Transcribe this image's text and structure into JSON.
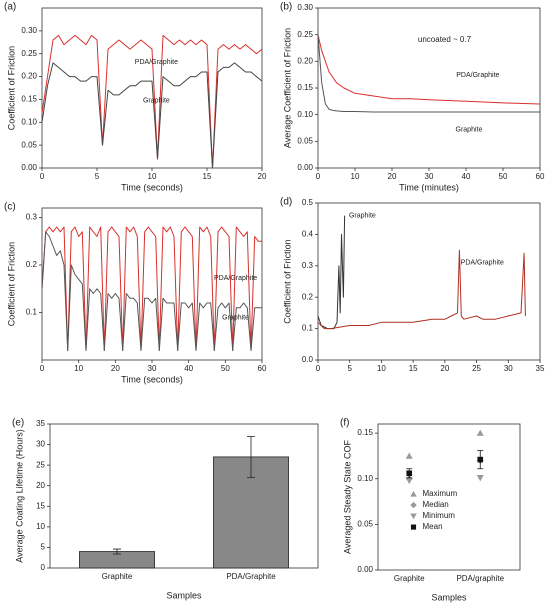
{
  "chart_data": [
    {
      "type": "line",
      "label": "(a)",
      "ylabel": "Coefficient of Friction",
      "xlabel": "Time (seconds)",
      "x": [
        0,
        0.5,
        1,
        1.5,
        2,
        2.5,
        3,
        3.5,
        4,
        4.5,
        5,
        5.5,
        6,
        6.5,
        7,
        7.5,
        8,
        8.5,
        9,
        9.5,
        10,
        10.5,
        11,
        11.5,
        12,
        12.5,
        13,
        13.5,
        14,
        14.5,
        15,
        15.5,
        16,
        16.5,
        17,
        17.5,
        18,
        18.5,
        19,
        19.5,
        20
      ],
      "series": [
        {
          "name": "PDA/Graphite",
          "color": "#d9302c",
          "values": [
            0.12,
            0.2,
            0.28,
            0.29,
            0.27,
            0.28,
            0.29,
            0.28,
            0.27,
            0.29,
            0.28,
            0.05,
            0.26,
            0.27,
            0.28,
            0.27,
            0.26,
            0.27,
            0.28,
            0.27,
            0.26,
            0.02,
            0.29,
            0.28,
            0.27,
            0.28,
            0.27,
            0.28,
            0.27,
            0.28,
            0.27,
            0.0,
            0.26,
            0.27,
            0.26,
            0.27,
            0.26,
            0.27,
            0.26,
            0.25,
            0.26
          ]
        },
        {
          "name": "Graphite",
          "color": "#444444",
          "values": [
            0.1,
            0.18,
            0.23,
            0.22,
            0.21,
            0.2,
            0.2,
            0.19,
            0.19,
            0.2,
            0.2,
            0.05,
            0.17,
            0.16,
            0.16,
            0.17,
            0.18,
            0.18,
            0.19,
            0.19,
            0.19,
            0.02,
            0.2,
            0.19,
            0.18,
            0.18,
            0.19,
            0.2,
            0.2,
            0.21,
            0.21,
            0.0,
            0.21,
            0.22,
            0.22,
            0.23,
            0.22,
            0.21,
            0.21,
            0.2,
            0.19
          ]
        }
      ],
      "xlim": [
        0,
        20
      ],
      "xticks": [
        0,
        5,
        10,
        15,
        20
      ],
      "ylim": [
        0,
        0.35
      ],
      "yticks": [
        {
          "value": 0,
          "label": "0.00"
        },
        0.05,
        {
          "value": 0.1,
          "label": "0.10"
        },
        0.15,
        {
          "value": 0.2,
          "label": "0.20"
        },
        0.25,
        {
          "value": 0.3,
          "label": "0.30"
        }
      ]
    },
    {
      "type": "line",
      "label": "(b)",
      "ylabel": "Average Coefficient of Friction",
      "xlabel": "Time (minutes)",
      "annotation": "uncoated ~ 0.7",
      "x": [
        0,
        1,
        2,
        3,
        4,
        5,
        7,
        10,
        15,
        20,
        25,
        30,
        40,
        50,
        60
      ],
      "series": [
        {
          "name": "PDA/Graphite",
          "color": "#d9302c",
          "values": [
            0.25,
            0.22,
            0.2,
            0.18,
            0.17,
            0.16,
            0.15,
            0.14,
            0.135,
            0.13,
            0.13,
            0.128,
            0.125,
            0.122,
            0.12
          ]
        },
        {
          "name": "Graphite",
          "color": "#555555",
          "values": [
            0.25,
            0.16,
            0.12,
            0.11,
            0.108,
            0.107,
            0.106,
            0.106,
            0.105,
            0.105,
            0.105,
            0.105,
            0.105,
            0.105,
            0.105
          ]
        }
      ],
      "xlim": [
        0,
        60
      ],
      "xticks": [
        0,
        10,
        20,
        30,
        40,
        50,
        60
      ],
      "ylim": [
        0,
        0.3
      ],
      "yticks": [
        {
          "value": 0,
          "label": "0.00"
        },
        0.05,
        {
          "value": 0.1,
          "label": "0.10"
        },
        0.15,
        {
          "value": 0.2,
          "label": "0.20"
        },
        0.25,
        {
          "value": 0.3,
          "label": "0.30"
        }
      ]
    },
    {
      "type": "line",
      "label": "(c)",
      "ylabel": "Coefficient of Friction",
      "xlabel": "Time (seconds)",
      "x": [
        0,
        1,
        2,
        3,
        4,
        5,
        6,
        7,
        8,
        9,
        10,
        11,
        12,
        13,
        14,
        15,
        16,
        17,
        18,
        19,
        20,
        21,
        22,
        23,
        24,
        25,
        26,
        27,
        28,
        29,
        30,
        31,
        32,
        33,
        34,
        35,
        36,
        37,
        38,
        39,
        40,
        41,
        42,
        43,
        44,
        45,
        46,
        47,
        48,
        49,
        50,
        51,
        52,
        53,
        54,
        55,
        56,
        57,
        58,
        59,
        60
      ],
      "series": [
        {
          "name": "PDA/Graphite",
          "color": "#d9302c",
          "values": [
            0.15,
            0.27,
            0.28,
            0.27,
            0.28,
            0.27,
            0.28,
            0.02,
            0.27,
            0.28,
            0.26,
            0.27,
            0.02,
            0.28,
            0.27,
            0.26,
            0.28,
            0.02,
            0.27,
            0.28,
            0.27,
            0.26,
            0.02,
            0.28,
            0.27,
            0.28,
            0.26,
            0.02,
            0.27,
            0.28,
            0.27,
            0.26,
            0.02,
            0.28,
            0.27,
            0.28,
            0.26,
            0.02,
            0.27,
            0.28,
            0.27,
            0.26,
            0.02,
            0.28,
            0.27,
            0.28,
            0.26,
            0.02,
            0.27,
            0.28,
            0.27,
            0.26,
            0.02,
            0.28,
            0.27,
            0.26,
            0.27,
            0.02,
            0.26,
            0.25,
            0.25
          ]
        },
        {
          "name": "Graphite",
          "color": "#555555",
          "values": [
            0.15,
            0.27,
            0.26,
            0.24,
            0.22,
            0.23,
            0.2,
            0.02,
            0.2,
            0.18,
            0.17,
            0.16,
            0.02,
            0.15,
            0.14,
            0.15,
            0.14,
            0.02,
            0.14,
            0.13,
            0.14,
            0.13,
            0.02,
            0.14,
            0.13,
            0.13,
            0.12,
            0.02,
            0.13,
            0.13,
            0.12,
            0.13,
            0.02,
            0.13,
            0.12,
            0.12,
            0.12,
            0.02,
            0.12,
            0.12,
            0.11,
            0.12,
            0.02,
            0.12,
            0.11,
            0.12,
            0.12,
            0.02,
            0.11,
            0.12,
            0.11,
            0.12,
            0.02,
            0.11,
            0.11,
            0.12,
            0.11,
            0.02,
            0.11,
            0.11,
            0.11
          ]
        }
      ],
      "xlim": [
        0,
        60
      ],
      "xticks": [
        0,
        10,
        20,
        30,
        40,
        50,
        60
      ],
      "ylim": [
        0,
        0.32
      ],
      "yticks": [
        0.1,
        0.2,
        0.3
      ]
    },
    {
      "type": "line",
      "label": "(d)",
      "ylabel": "Coefficient of Friction",
      "series": [
        {
          "name": "Graphite",
          "color": "#333333",
          "x": [
            0,
            0.5,
            1,
            1.5,
            2,
            2.5,
            3,
            3.3,
            3.5,
            3.7,
            4,
            4.2
          ],
          "values": [
            0.14,
            0.11,
            0.105,
            0.1,
            0.1,
            0.1,
            0.12,
            0.3,
            0.15,
            0.4,
            0.2,
            0.46
          ]
        },
        {
          "name": "PDA/Graphite",
          "color": "#b03020",
          "x": [
            0,
            1,
            2,
            5,
            8,
            10,
            12,
            15,
            18,
            20,
            21,
            22,
            22.3,
            22.6,
            23,
            25,
            26,
            28,
            30,
            32,
            32.5,
            32.7
          ],
          "values": [
            0.12,
            0.1,
            0.1,
            0.11,
            0.11,
            0.12,
            0.12,
            0.12,
            0.13,
            0.13,
            0.14,
            0.15,
            0.35,
            0.14,
            0.13,
            0.14,
            0.13,
            0.13,
            0.14,
            0.15,
            0.34,
            0.14
          ]
        }
      ],
      "xlim": [
        0,
        35
      ],
      "xticks": [
        0,
        5,
        10,
        15,
        20,
        25,
        30,
        35
      ],
      "ylim": [
        0,
        0.5
      ],
      "yticks": [
        {
          "value": 0,
          "label": "0.0"
        },
        0.1,
        0.2,
        0.3,
        0.4,
        0.5
      ]
    },
    {
      "type": "bar",
      "label": "(e)",
      "ylabel": "Average Coating Lifetime (Hours)",
      "xlabel": "Samples",
      "categories": [
        "Graphite",
        "PDA/Graphite"
      ],
      "values": [
        4,
        27
      ],
      "errors": [
        0.6,
        5
      ],
      "color": "#888888",
      "ylim": [
        0,
        35
      ],
      "yticks": [
        0,
        5,
        10,
        15,
        20,
        25,
        30,
        35
      ]
    },
    {
      "type": "point",
      "label": "(f)",
      "ylabel": "Averaged Steady State COF",
      "xlabel": "Samples",
      "categories": [
        "Graphite",
        "PDA/graphite"
      ],
      "series": [
        {
          "name": "Maximum",
          "color": "#999999",
          "marker": "triangle-up",
          "values": [
            0.125,
            0.15
          ]
        },
        {
          "name": "Median",
          "color": "#999999",
          "marker": "diamond",
          "values": [
            0.1,
            0.12
          ]
        },
        {
          "name": "Minimum",
          "color": "#999999",
          "marker": "triangle-down",
          "values": [
            0.098,
            0.101
          ]
        },
        {
          "name": "Mean",
          "color": "#111111",
          "marker": "square",
          "values": [
            0.106,
            0.121
          ],
          "errors": [
            0.005,
            0.01
          ]
        }
      ],
      "ylim": [
        0,
        0.16
      ],
      "yticks": [
        {
          "value": 0,
          "label": "0.00"
        },
        0.05,
        {
          "value": 0.1,
          "label": "0.10"
        },
        0.15
      ]
    }
  ]
}
